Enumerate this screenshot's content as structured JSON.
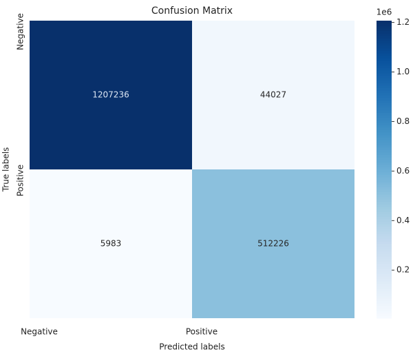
{
  "chart_data": {
    "type": "heatmap",
    "title": "Confusion Matrix",
    "x_label": "Predicted labels",
    "y_label": "True labels",
    "x_categories": [
      "Negative",
      "Positive"
    ],
    "y_categories": [
      "Negative",
      "Positive"
    ],
    "values": [
      [
        1207236,
        44027
      ],
      [
        5983,
        512226
      ]
    ],
    "colormap": [
      "#f7fbff",
      "#deebf7",
      "#c6dbef",
      "#9ecae1",
      "#6baed6",
      "#4292c6",
      "#2171b5",
      "#08519c",
      "#08306b"
    ],
    "clim": [
      5983,
      1207236
    ],
    "colorbar_offset_label": "1e6",
    "colorbar_ticks": [
      {
        "value": 200000,
        "label": "0.2"
      },
      {
        "value": 400000,
        "label": "0.4"
      },
      {
        "value": 600000,
        "label": "0.6"
      },
      {
        "value": 800000,
        "label": "0.8"
      },
      {
        "value": 1000000,
        "label": "1.0"
      },
      {
        "value": 1200000,
        "label": "1.2"
      }
    ]
  }
}
